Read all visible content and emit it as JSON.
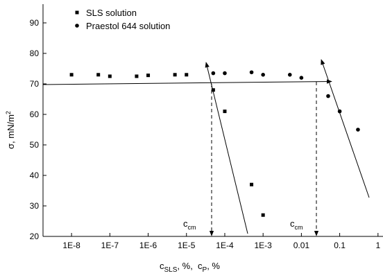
{
  "chart_data": {
    "type": "scatter",
    "xlabel_parts": [
      "c",
      "SLS",
      ", %,  c",
      "P",
      ", %"
    ],
    "ylabel_parts": [
      "σ, mN/m",
      "2"
    ],
    "annotations": [
      {
        "main": "c",
        "sub": "cm"
      },
      {
        "main": "c",
        "sub": "cm"
      }
    ],
    "log_x": true,
    "xlim": [
      1.8e-09,
      1.35
    ],
    "ylim": [
      20,
      96
    ],
    "xticks": [
      {
        "value": 1e-08,
        "label": "1E-8"
      },
      {
        "value": 1e-07,
        "label": "1E-7"
      },
      {
        "value": 1e-06,
        "label": "1E-6"
      },
      {
        "value": 1e-05,
        "label": "1E-5"
      },
      {
        "value": 0.0001,
        "label": "1E-4"
      },
      {
        "value": 0.001,
        "label": "1E-3"
      },
      0.01,
      0.1,
      1
    ],
    "yticks": [
      20,
      30,
      40,
      50,
      60,
      70,
      80,
      90
    ],
    "series": [
      {
        "name": "SLS solution",
        "marker": "square",
        "color": "#000000",
        "x": [
          1e-08,
          5e-08,
          1e-07,
          5e-07,
          1e-06,
          5e-06,
          1e-05,
          5e-05,
          0.0001,
          0.0005,
          0.001
        ],
        "values": [
          73,
          73,
          72.5,
          72.5,
          72.8,
          73,
          73,
          68,
          61,
          37,
          27
        ]
      },
      {
        "name": "Praestol 644 solution",
        "marker": "circle",
        "color": "#000000",
        "x": [
          5e-05,
          0.0001,
          0.0005,
          0.001,
          0.005,
          0.01,
          0.05,
          0.1,
          0.3
        ],
        "values": [
          73.5,
          73.5,
          73.8,
          73,
          73,
          72,
          66,
          61,
          55
        ]
      }
    ]
  }
}
